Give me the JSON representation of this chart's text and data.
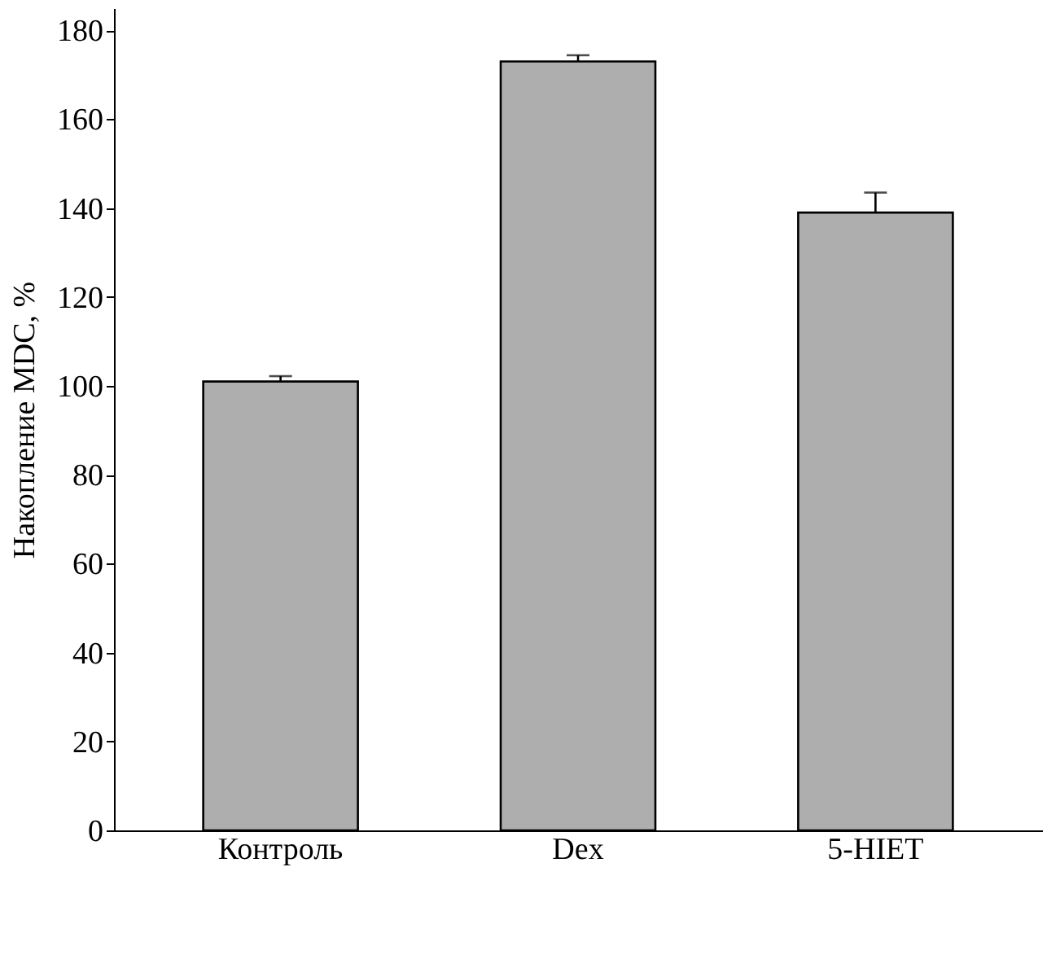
{
  "chart_data": {
    "type": "bar",
    "ylabel": "Накопление MDC, %",
    "categories": [
      "Контроль",
      "Dex",
      "5-HIET"
    ],
    "values": [
      101,
      173,
      139
    ],
    "color": "#aeaeae",
    "errors": [
      [
        101,
        102.2
      ],
      [
        173,
        174.4
      ],
      [
        139,
        143.5
      ]
    ],
    "ylim": [
      0,
      185
    ],
    "yticks": [
      0,
      20,
      40,
      60,
      80,
      100,
      120,
      140,
      160,
      180
    ],
    "grid": false
  }
}
